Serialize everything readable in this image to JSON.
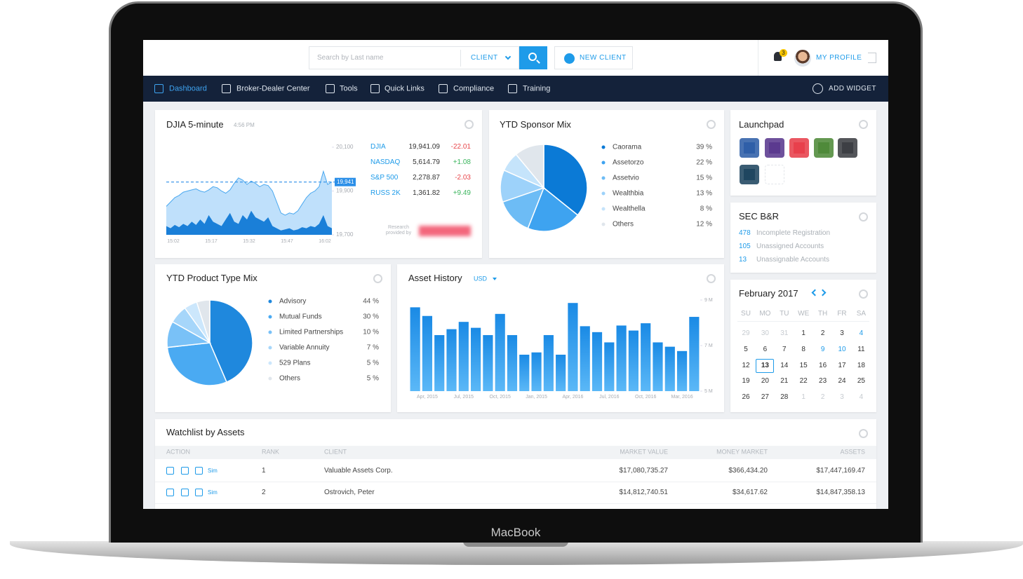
{
  "device_label": "MacBook",
  "header": {
    "search_placeholder": "Search by Last name",
    "search_scope": "CLIENT",
    "new_client": "NEW CLIENT",
    "notifications": 3,
    "profile": "MY PROFILE"
  },
  "nav": {
    "items": [
      "Dashboard",
      "Broker-Dealer Center",
      "Tools",
      "Quick Links",
      "Compliance",
      "Training"
    ],
    "add_widget": "ADD WIDGET"
  },
  "djia": {
    "title": "DJIA 5-minute",
    "time": "4:56 PM",
    "chart_data": {
      "type": "area",
      "x_labels": [
        "15:02",
        "15:17",
        "15:32",
        "15:47",
        "16:02"
      ],
      "series": [
        {
          "color": "#bfe0fb",
          "values": [
            19830,
            19850,
            19870,
            19880,
            19895,
            19900,
            19905,
            19910,
            19900,
            19895,
            19905,
            19920,
            19915,
            19900,
            19890,
            19905,
            19935,
            19960,
            19950,
            19930,
            19945,
            19935,
            19920,
            19930,
            19925,
            19900,
            19850,
            19800,
            19790,
            19800,
            19795,
            19810,
            19840,
            19870,
            19890,
            19900,
            19920,
            19990,
            19930,
            19941
          ]
        },
        {
          "color": "#1a7fd8",
          "values": [
            19740,
            19730,
            19745,
            19735,
            19750,
            19740,
            19760,
            19745,
            19770,
            19750,
            19790,
            19760,
            19750,
            19740,
            19770,
            19800,
            19760,
            19750,
            19790,
            19770,
            19810,
            19780,
            19770,
            19760,
            19780,
            19740,
            19730,
            19720,
            19725,
            19730,
            19720,
            19725,
            19735,
            19730,
            19740,
            19735,
            19750,
            19790,
            19740,
            19730
          ]
        }
      ],
      "ylim": [
        19700,
        20100
      ],
      "yticks": [
        {
          "value": 19700,
          "label": "19,700"
        },
        {
          "value": 19900,
          "label": "19,900"
        },
        {
          "value": 20100,
          "label": "20,100"
        }
      ],
      "current": {
        "value": 19941,
        "label": "19,941"
      }
    },
    "quotes": [
      {
        "symbol": "DJIA",
        "last": "19,941.09",
        "change": "-22.01"
      },
      {
        "symbol": "NASDAQ",
        "last": "5,614.79",
        "change": "+1.08"
      },
      {
        "symbol": "S&P 500",
        "last": "2,278.87",
        "change": "-2.03"
      },
      {
        "symbol": "RUSS 2K",
        "last": "1,361.82",
        "change": "+9.49"
      }
    ],
    "credit": "Research provided by"
  },
  "sponsor_mix": {
    "title": "YTD Sponsor Mix",
    "chart_data": {
      "type": "pie",
      "categories": [
        "Caorama",
        "Assetorzo",
        "Assetvio",
        "Wealthbia",
        "Wealthella",
        "Others"
      ],
      "values": [
        39,
        22,
        15,
        13,
        8,
        12
      ],
      "value_labels": [
        "39 %",
        "22 %",
        "15 %",
        "13 %",
        "8 %",
        "12 %"
      ],
      "colors": [
        "#0b7ad6",
        "#3ea3f0",
        "#6dbcf5",
        "#9dd2fa",
        "#c5e4fb",
        "#e0e6ec"
      ]
    }
  },
  "product_mix": {
    "title": "YTD Product Type Mix",
    "chart_data": {
      "type": "pie",
      "categories": [
        "Advisory",
        "Mutual Funds",
        "Limited Partnerships",
        "Variable Annuity",
        "529 Plans",
        "Others"
      ],
      "values": [
        44,
        30,
        10,
        7,
        5,
        5
      ],
      "value_labels": [
        "44 %",
        "30 %",
        "10 %",
        "7 %",
        "5 %",
        "5 %"
      ],
      "colors": [
        "#1f88dd",
        "#4aaaf2",
        "#79c1f7",
        "#a6d6fa",
        "#cce7fc",
        "#e0e6ec"
      ]
    }
  },
  "asset_history": {
    "title": "Asset History",
    "currency": "USD",
    "chart_data": {
      "type": "bar",
      "categories": [
        null,
        "Apr, 2015",
        null,
        null,
        "Jul, 2015",
        null,
        null,
        "Oct, 2015",
        null,
        null,
        "Jan, 2015",
        null,
        null,
        "Apr, 2016",
        null,
        null,
        "Jul, 2016",
        null,
        null,
        "Oct, 2016",
        null,
        null,
        "Mar, 2016",
        null
      ],
      "values": [
        8.68,
        8.3,
        7.46,
        7.72,
        8.04,
        7.78,
        7.46,
        8.39,
        7.46,
        6.6,
        6.7,
        7.46,
        6.6,
        8.87,
        7.85,
        7.59,
        7.14,
        7.88,
        7.66,
        7.98,
        7.14,
        6.95,
        6.76,
        8.26
      ],
      "color": "#1a8ae5",
      "ylim": [
        5,
        9
      ],
      "yticks": [
        {
          "value": 5,
          "label": "5 M"
        },
        {
          "value": 7,
          "label": "7 M"
        },
        {
          "value": 9,
          "label": "9 M"
        }
      ]
    }
  },
  "launchpad": {
    "title": "Launchpad"
  },
  "sec": {
    "title": "SEC B&R",
    "items": [
      {
        "count": 478,
        "label": "Incomplete Registration"
      },
      {
        "count": 105,
        "label": "Unassigned Accounts"
      },
      {
        "count": 13,
        "label": "Unassignable Accounts"
      }
    ]
  },
  "calendar": {
    "title": "February 2017",
    "weekdays": [
      "SU",
      "MO",
      "TU",
      "WE",
      "TH",
      "FR",
      "SA"
    ],
    "weeks": [
      [
        29,
        30,
        31,
        1,
        2,
        3,
        4
      ],
      [
        5,
        6,
        7,
        8,
        9,
        10,
        11
      ],
      [
        12,
        13,
        14,
        15,
        16,
        17,
        18
      ],
      [
        19,
        20,
        21,
        22,
        23,
        24,
        25
      ],
      [
        26,
        27,
        28,
        1,
        2,
        3,
        4
      ]
    ]
  },
  "watchlist": {
    "title": "Watchlist by Assets",
    "columns": [
      "ACTION",
      "RANK",
      "CLIENT",
      "MARKET VALUE",
      "MONEY MARKET",
      "ASSETS"
    ],
    "action_link": "Sim",
    "rows": [
      {
        "rank": 1,
        "client": "Valuable Assets Corp.",
        "market_value": "$17,080,735.27",
        "money_market": "$366,434.20",
        "assets": "$17,447,169.47"
      },
      {
        "rank": 2,
        "client": "Ostrovich, Peter",
        "market_value": "$14,812,740.51",
        "money_market": "$34,617.62",
        "assets": "$14,847,358.13"
      }
    ]
  }
}
